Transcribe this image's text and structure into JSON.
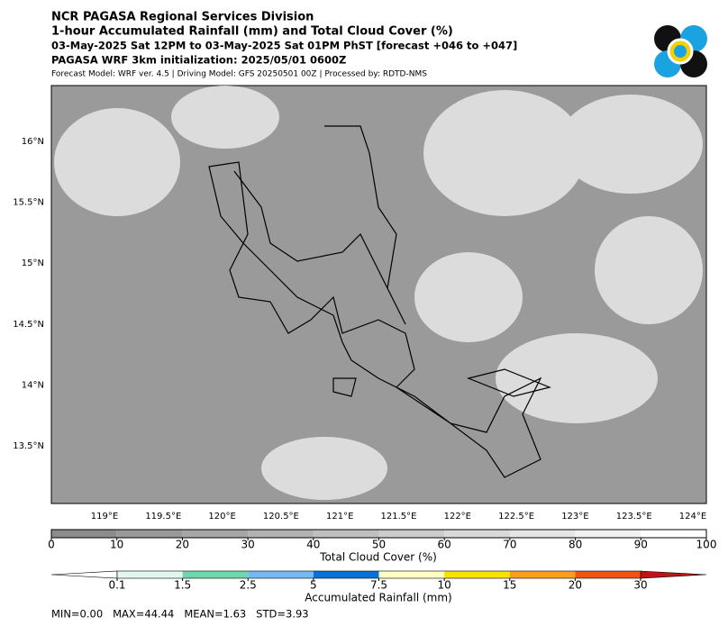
{
  "header": {
    "lines": [
      "NCR PAGASA Regional Services Division",
      "1-hour Accumulated Rainfall (mm) and Total Cloud Cover (%)",
      "03-May-2025 Sat 12PM to 03-May-2025 Sat 01PM PhST [forecast +046 to +047]",
      "PAGASA WRF 3km initialization: 2025/05/01 0600Z",
      "Forecast Model: WRF ver. 4.5 | Driving Model: GFS 20250501 00Z | Processed by: RDTD-NMS"
    ]
  },
  "map": {
    "lat_labels": [
      "16°N",
      "15.5°N",
      "15°N",
      "14.5°N",
      "14°N",
      "13.5°N"
    ],
    "lon_labels": [
      "119°E",
      "119.5°E",
      "120°E",
      "120.5°E",
      "121°E",
      "121.5°E",
      "122°E",
      "122.5°E",
      "123°E",
      "123.5°E",
      "124°E"
    ]
  },
  "cloud_colorbar": {
    "label": "Total Cloud Cover (%)",
    "ticks": [
      0,
      10,
      20,
      30,
      40,
      50,
      60,
      70,
      80,
      90,
      100
    ]
  },
  "rain_colorbar": {
    "label": "Accumulated Rainfall (mm)",
    "ticks": [
      0.1,
      1.5,
      2.5,
      5,
      7.5,
      10,
      15,
      20,
      30
    ]
  },
  "stats": "MIN=0.00   MAX=44.44   MEAN=1.63   STD=3.93"
}
